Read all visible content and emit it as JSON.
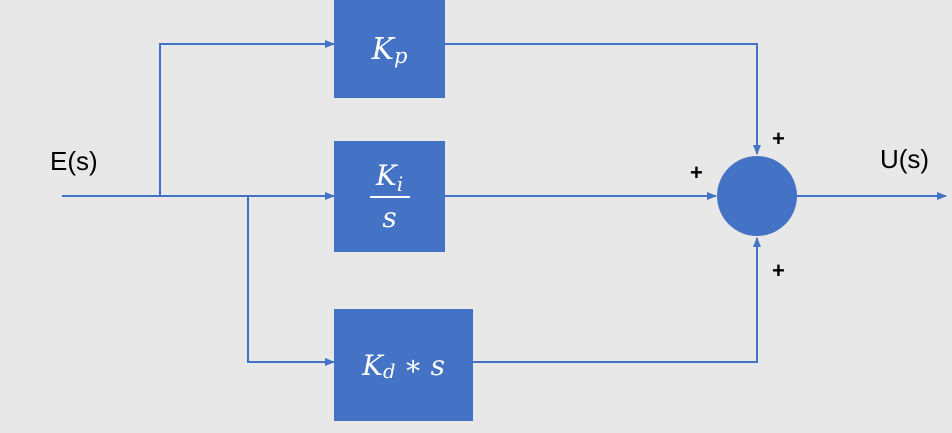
{
  "signals": {
    "input": "E(s)",
    "output": "U(s)"
  },
  "blocks": {
    "proportional": {
      "symbol": "K",
      "subscript": "p"
    },
    "integral": {
      "symbol": "K",
      "subscript": "i",
      "denominator": "s"
    },
    "derivative": {
      "symbol": "K",
      "subscript": "d",
      "operator": "∗",
      "factor": "s"
    }
  },
  "summing_junction": {
    "signs": {
      "top": "+",
      "left": "+",
      "bottom": "+"
    }
  },
  "colors": {
    "block_fill": "#4472c4",
    "wire": "#4472c4",
    "background": "#e8e8e8"
  }
}
